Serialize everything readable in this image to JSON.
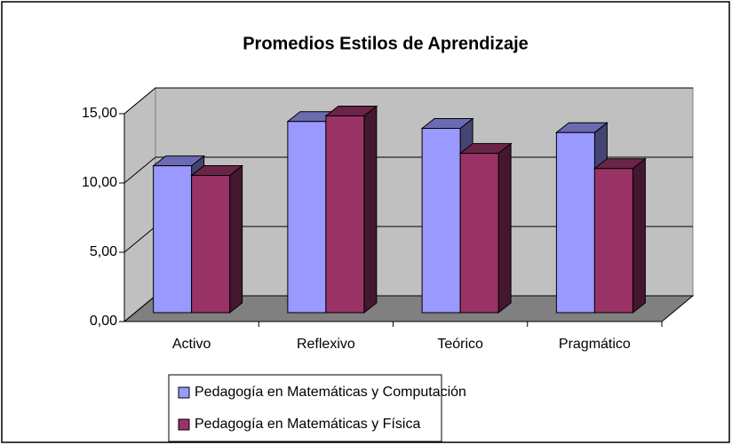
{
  "chart_data": {
    "type": "bar3d",
    "title": "Promedios Estilos de Aprendizaje",
    "categories": [
      "Activo",
      "Reflexivo",
      "Teórico",
      "Pragmático"
    ],
    "series": [
      {
        "name": "Pedagogía en Matemáticas y Computación",
        "color": "#9999ff",
        "values": [
          10.6,
          13.8,
          13.3,
          13.0
        ]
      },
      {
        "name": "Pedagogía en Matemáticas y Física",
        "color": "#993366",
        "values": [
          9.9,
          14.2,
          11.5,
          10.4
        ]
      }
    ],
    "ylim": [
      0,
      15
    ],
    "yticks": [
      {
        "value": 0,
        "label": "0,00"
      },
      {
        "value": 5,
        "label": "5,00"
      },
      {
        "value": 10,
        "label": "10,00"
      },
      {
        "value": 15,
        "label": "15,00"
      }
    ],
    "grid": true
  }
}
